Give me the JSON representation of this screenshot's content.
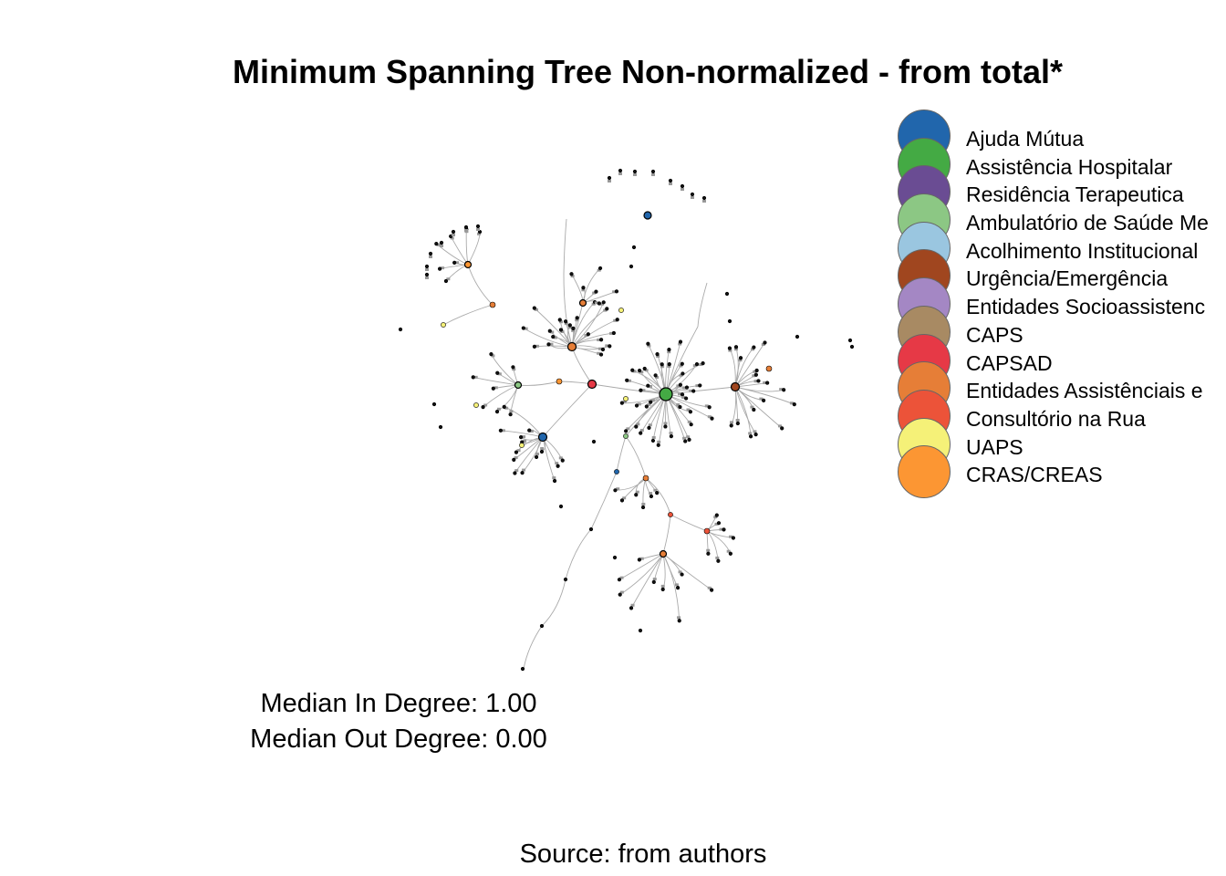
{
  "title": "Minimum Spanning Tree Non-normalized - from total*",
  "legend": [
    {
      "label": "Ajuda Mútua",
      "color": "#2166ac"
    },
    {
      "label": "Assistência Hospitalar",
      "color": "#44aa44"
    },
    {
      "label": "Residência Terapeutica",
      "color": "#6a4c93"
    },
    {
      "label": "Ambulatório de Saúde Me",
      "color": "#8cc784"
    },
    {
      "label": "Acolhimento Institucional",
      "color": "#9ac6e0"
    },
    {
      "label": "Urgência/Emergência",
      "color": "#a0461f"
    },
    {
      "label": "Entidades Socioassistenc",
      "color": "#a487c4"
    },
    {
      "label": "CAPS",
      "color": "#a88a63"
    },
    {
      "label": "CAPSAD",
      "color": "#e63946"
    },
    {
      "label": "Entidades Assistênciais e",
      "color": "#e67e37"
    },
    {
      "label": "Consultório na Rua",
      "color": "#ec5339"
    },
    {
      "label": "UAPS",
      "color": "#f5f178"
    },
    {
      "label": "CRAS/CREAS",
      "color": "#fc9633"
    }
  ],
  "stats": {
    "median_in": "Median In Degree: 1.00",
    "median_out": "Median Out Degree: 0.00"
  },
  "source": "Source: from authors",
  "colors": {
    "node_default": "#111111",
    "edge": "#aaaaaa",
    "arrow": "#999999"
  }
}
